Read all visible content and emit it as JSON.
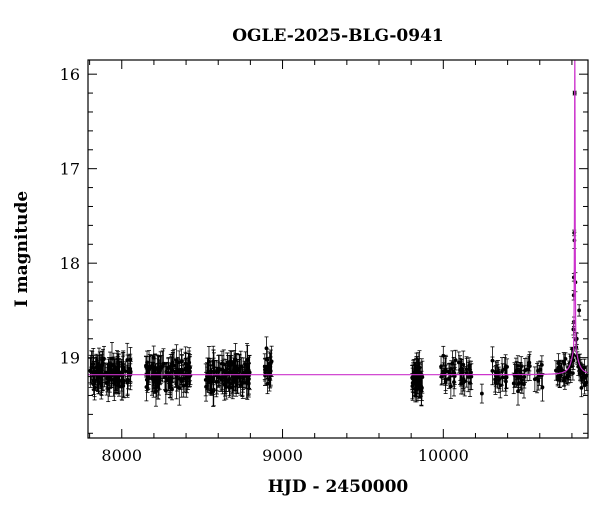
{
  "chart_data": {
    "type": "scatter",
    "title": "OGLE-2025-BLG-0941",
    "xlabel": "HJD - 2450000",
    "ylabel": "I magnitude",
    "xlim": [
      7790,
      10900
    ],
    "ylim": [
      19.85,
      15.85
    ],
    "y_inverted": true,
    "x_ticks_major": [
      8000,
      9000,
      10000
    ],
    "x_ticks_minor_step": 200,
    "y_ticks_major": [
      16,
      17,
      18,
      19
    ],
    "y_ticks_minor_step": 0.2,
    "grid": false,
    "colors": {
      "points": "#000000",
      "model": "#cc33cc"
    },
    "baseline_mag": 19.18,
    "model": {
      "name": "",
      "baseline": 19.18,
      "t0": 10818,
      "peak_mag": 15.85,
      "width_days": 10,
      "wing_width_days": 22,
      "wing_amplitude_mag": 0.3
    },
    "seasons": [
      {
        "start": 7800,
        "end": 8060,
        "mean": 19.18,
        "n": 110,
        "err": 0.14
      },
      {
        "start": 8150,
        "end": 8430,
        "mean": 19.17,
        "n": 110,
        "err": 0.14
      },
      {
        "start": 8520,
        "end": 8800,
        "mean": 19.17,
        "n": 110,
        "err": 0.14
      },
      {
        "start": 8885,
        "end": 8935,
        "mean": 19.15,
        "n": 18,
        "err": 0.13
      },
      {
        "start": 9800,
        "end": 9870,
        "mean": 19.22,
        "n": 40,
        "err": 0.15
      },
      {
        "start": 9980,
        "end": 10180,
        "mean": 19.16,
        "n": 45,
        "err": 0.12
      },
      {
        "start": 10300,
        "end": 10620,
        "mean": 19.18,
        "n": 55,
        "err": 0.12
      },
      {
        "start": 10700,
        "end": 10900,
        "mean": 19.16,
        "n": 70,
        "err": 0.08
      }
    ],
    "notable_points": [
      {
        "x": 8900,
        "y": 18.9,
        "err": 0.12
      },
      {
        "x": 10000,
        "y": 18.98,
        "err": 0.1
      },
      {
        "x": 10240,
        "y": 19.38,
        "err": 0.1
      },
      {
        "x": 10817,
        "y": 16.2,
        "err": 0.02
      },
      {
        "x": 10814,
        "y": 17.68,
        "err": 0.03
      },
      {
        "x": 10812,
        "y": 18.15,
        "err": 0.04
      },
      {
        "x": 10811,
        "y": 18.34,
        "err": 0.05
      },
      {
        "x": 10813,
        "y": 18.62,
        "err": 0.05
      },
      {
        "x": 10809,
        "y": 18.7,
        "err": 0.06
      },
      {
        "x": 10830,
        "y": 18.8,
        "err": 0.06
      },
      {
        "x": 10845,
        "y": 18.5,
        "err": 0.06
      }
    ]
  }
}
